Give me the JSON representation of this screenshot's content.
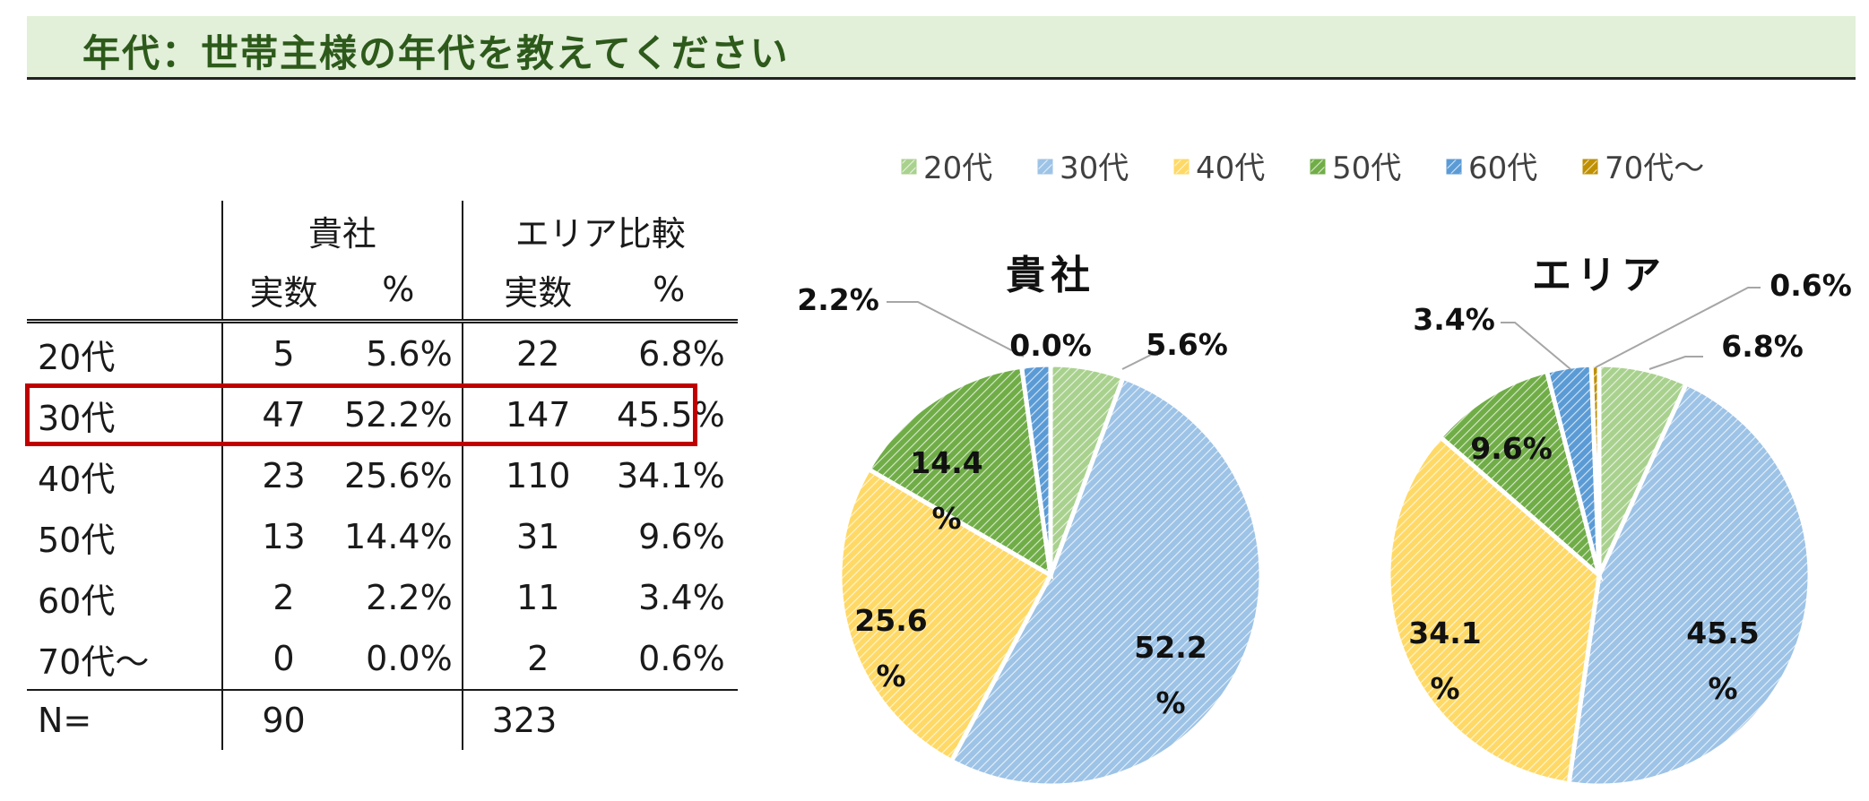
{
  "page_title": "年代：世帯主様の年代を教えてください",
  "table": {
    "group_headers": [
      "貴社",
      "エリア比較"
    ],
    "sub_headers": [
      "実数",
      "%",
      "実数",
      "%"
    ],
    "rows": [
      {
        "label": "20代",
        "company_n": "5",
        "company_pct": "5.6%",
        "area_n": "22",
        "area_pct": "6.8%"
      },
      {
        "label": "30代",
        "company_n": "47",
        "company_pct": "52.2%",
        "area_n": "147",
        "area_pct": "45.5%"
      },
      {
        "label": "40代",
        "company_n": "23",
        "company_pct": "25.6%",
        "area_n": "110",
        "area_pct": "34.1%"
      },
      {
        "label": "50代",
        "company_n": "13",
        "company_pct": "14.4%",
        "area_n": "31",
        "area_pct": "9.6%"
      },
      {
        "label": "60代",
        "company_n": "2",
        "company_pct": "2.2%",
        "area_n": "11",
        "area_pct": "3.4%"
      },
      {
        "label": "70代～",
        "company_n": "0",
        "company_pct": "0.0%",
        "area_n": "2",
        "area_pct": "0.6%"
      }
    ],
    "total": {
      "label": "N=",
      "company_n": "90",
      "area_n": "323"
    },
    "highlight_row": "30代",
    "highlight_color": "#c00000"
  },
  "chart_data": [
    {
      "type": "pie",
      "title": "貴社",
      "categories": [
        "20代",
        "30代",
        "40代",
        "50代",
        "60代",
        "70代～"
      ],
      "values": [
        5.6,
        52.2,
        25.6,
        14.4,
        2.2,
        0.0
      ],
      "labels": [
        "5.6%",
        "52.2\n%",
        "25.6\n%",
        "14.4\n%",
        "2.2%",
        "0.0%"
      ],
      "colors": [
        "#a9d18e",
        "#9dc3e6",
        "#ffd966",
        "#70ad47",
        "#5b9bd5",
        "#bf9000"
      ],
      "legend": "top",
      "pattern": "diagonal hatch"
    },
    {
      "type": "pie",
      "title": "エリア",
      "categories": [
        "20代",
        "30代",
        "40代",
        "50代",
        "60代",
        "70代～"
      ],
      "values": [
        6.8,
        45.5,
        34.1,
        9.6,
        3.4,
        0.6
      ],
      "labels": [
        "6.8%",
        "45.5\n%",
        "34.1\n%",
        "9.6%",
        "3.4%",
        "0.6%"
      ],
      "colors": [
        "#a9d18e",
        "#9dc3e6",
        "#ffd966",
        "#70ad47",
        "#5b9bd5",
        "#bf9000"
      ],
      "legend": "top",
      "pattern": "diagonal hatch"
    }
  ]
}
